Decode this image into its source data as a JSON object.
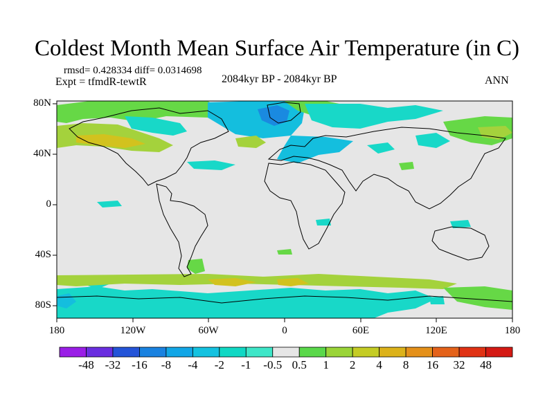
{
  "title": "Coldest Month Mean Surface Air Temperature (in C)",
  "stats": "rmsd= 0.428334  diff= 0.0314698",
  "experiment": "Expt = tfmdR-tewtR",
  "period": "2084kyr BP - 2084kyr BP",
  "season": "ANN",
  "lat_labels": [
    "80N",
    "40N",
    "0",
    "40S",
    "80S"
  ],
  "lon_labels": [
    "180",
    "120W",
    "60W",
    "0",
    "60E",
    "120E",
    "180"
  ],
  "colorbar": {
    "labels": [
      "-48",
      "-32",
      "-16",
      "-8",
      "-4",
      "-2",
      "-1",
      "-0.5",
      "0.5",
      "1",
      "2",
      "4",
      "8",
      "16",
      "32",
      "48"
    ],
    "colors": [
      "#9a1ee6",
      "#6a2ee0",
      "#2454d8",
      "#1a82e0",
      "#12a6e6",
      "#14c2e0",
      "#10d8c4",
      "#3ee6c8",
      "#e6e6e6",
      "#5ad84a",
      "#9ad438",
      "#c4cc24",
      "#dcb21a",
      "#e4901a",
      "#e4621a",
      "#e03214",
      "#d41a14"
    ]
  },
  "colors": {
    "background": "#e6e6e6",
    "negative_small": "#18d8c8",
    "negative_mid": "#14bede",
    "negative_large": "#1a8ae0",
    "positive_small": "#66d846",
    "positive_mid": "#a4d23c",
    "positive_large": "#d2c21e"
  }
}
